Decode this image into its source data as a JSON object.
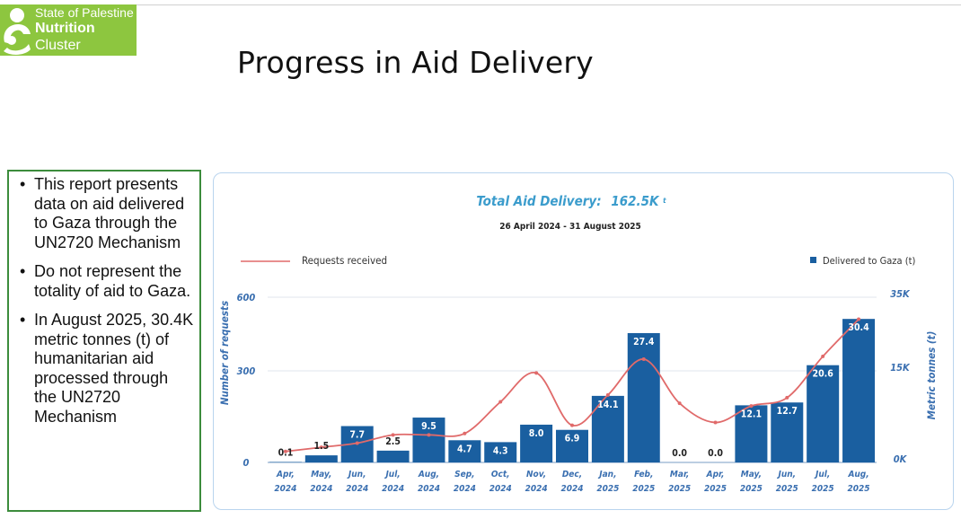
{
  "logo": {
    "line1": "State of Palestine",
    "line2": "Nutrition",
    "line3": "Cluster",
    "icon": "mother-child-icon"
  },
  "slide": {
    "title": "Progress in Aid Delivery"
  },
  "info": {
    "bullets": [
      "This report presents data on aid delivered to Gaza through the UN2720 Mechanism",
      "Do not represent the totality of aid to Gaza.",
      "In August 2025, 30.4K metric tonnes (t) of humanitarian aid processed through the UN2720 Mechanism"
    ]
  },
  "colors": {
    "bar": "#1a5fa0",
    "line": "#e06a6a",
    "title": "#3b9ccc",
    "axis_label": "#3a6fb0"
  },
  "chart_data": {
    "type": "bar",
    "title_prefix": "Total Aid Delivery:",
    "title_value": "162.5K",
    "title_unit": "t",
    "subtitle": "26 April 2024 - 31 August 2025",
    "legend": {
      "line": "Requests received",
      "bar": "Delivered to Gaza (t)"
    },
    "categories": [
      [
        "Apr,",
        "2024"
      ],
      [
        "May,",
        "2024"
      ],
      [
        "Jun,",
        "2024"
      ],
      [
        "Jul,",
        "2024"
      ],
      [
        "Aug,",
        "2024"
      ],
      [
        "Sep,",
        "2024"
      ],
      [
        "Oct,",
        "2024"
      ],
      [
        "Nov,",
        "2024"
      ],
      [
        "Dec,",
        "2024"
      ],
      [
        "Jan,",
        "2025"
      ],
      [
        "Feb,",
        "2025"
      ],
      [
        "Mar,",
        "2025"
      ],
      [
        "Apr,",
        "2025"
      ],
      [
        "May,",
        "2025"
      ],
      [
        "Jun,",
        "2025"
      ],
      [
        "Jul,",
        "2025"
      ],
      [
        "Aug,",
        "2025"
      ]
    ],
    "series": [
      {
        "name": "Delivered to Gaza (t)",
        "axis": "right",
        "values": [
          0.1,
          1.5,
          7.7,
          2.5,
          9.5,
          4.7,
          4.3,
          8.0,
          6.9,
          14.1,
          27.4,
          0.0,
          0.0,
          12.1,
          12.7,
          20.6,
          30.4
        ],
        "labels": [
          "0.1",
          "1.5",
          "7.7",
          "2.5",
          "9.5",
          "4.7",
          "4.3",
          "8.0",
          "6.9",
          "14.1",
          "27.4",
          "0.0",
          "0.0",
          "12.1",
          "12.7",
          "20.6",
          "30.4"
        ]
      },
      {
        "name": "Requests received",
        "axis": "left",
        "values": [
          40,
          55,
          70,
          100,
          100,
          105,
          220,
          325,
          135,
          245,
          375,
          215,
          145,
          205,
          235,
          385,
          520
        ]
      }
    ],
    "y_left": {
      "label": "Number of requests",
      "ticks": [
        "600",
        "300",
        "0"
      ],
      "range": [
        0,
        600
      ]
    },
    "y_right": {
      "label": "Metric tonnes (t)",
      "ticks": [
        "35K",
        "15K",
        "0K"
      ],
      "range": [
        0,
        35
      ]
    }
  }
}
